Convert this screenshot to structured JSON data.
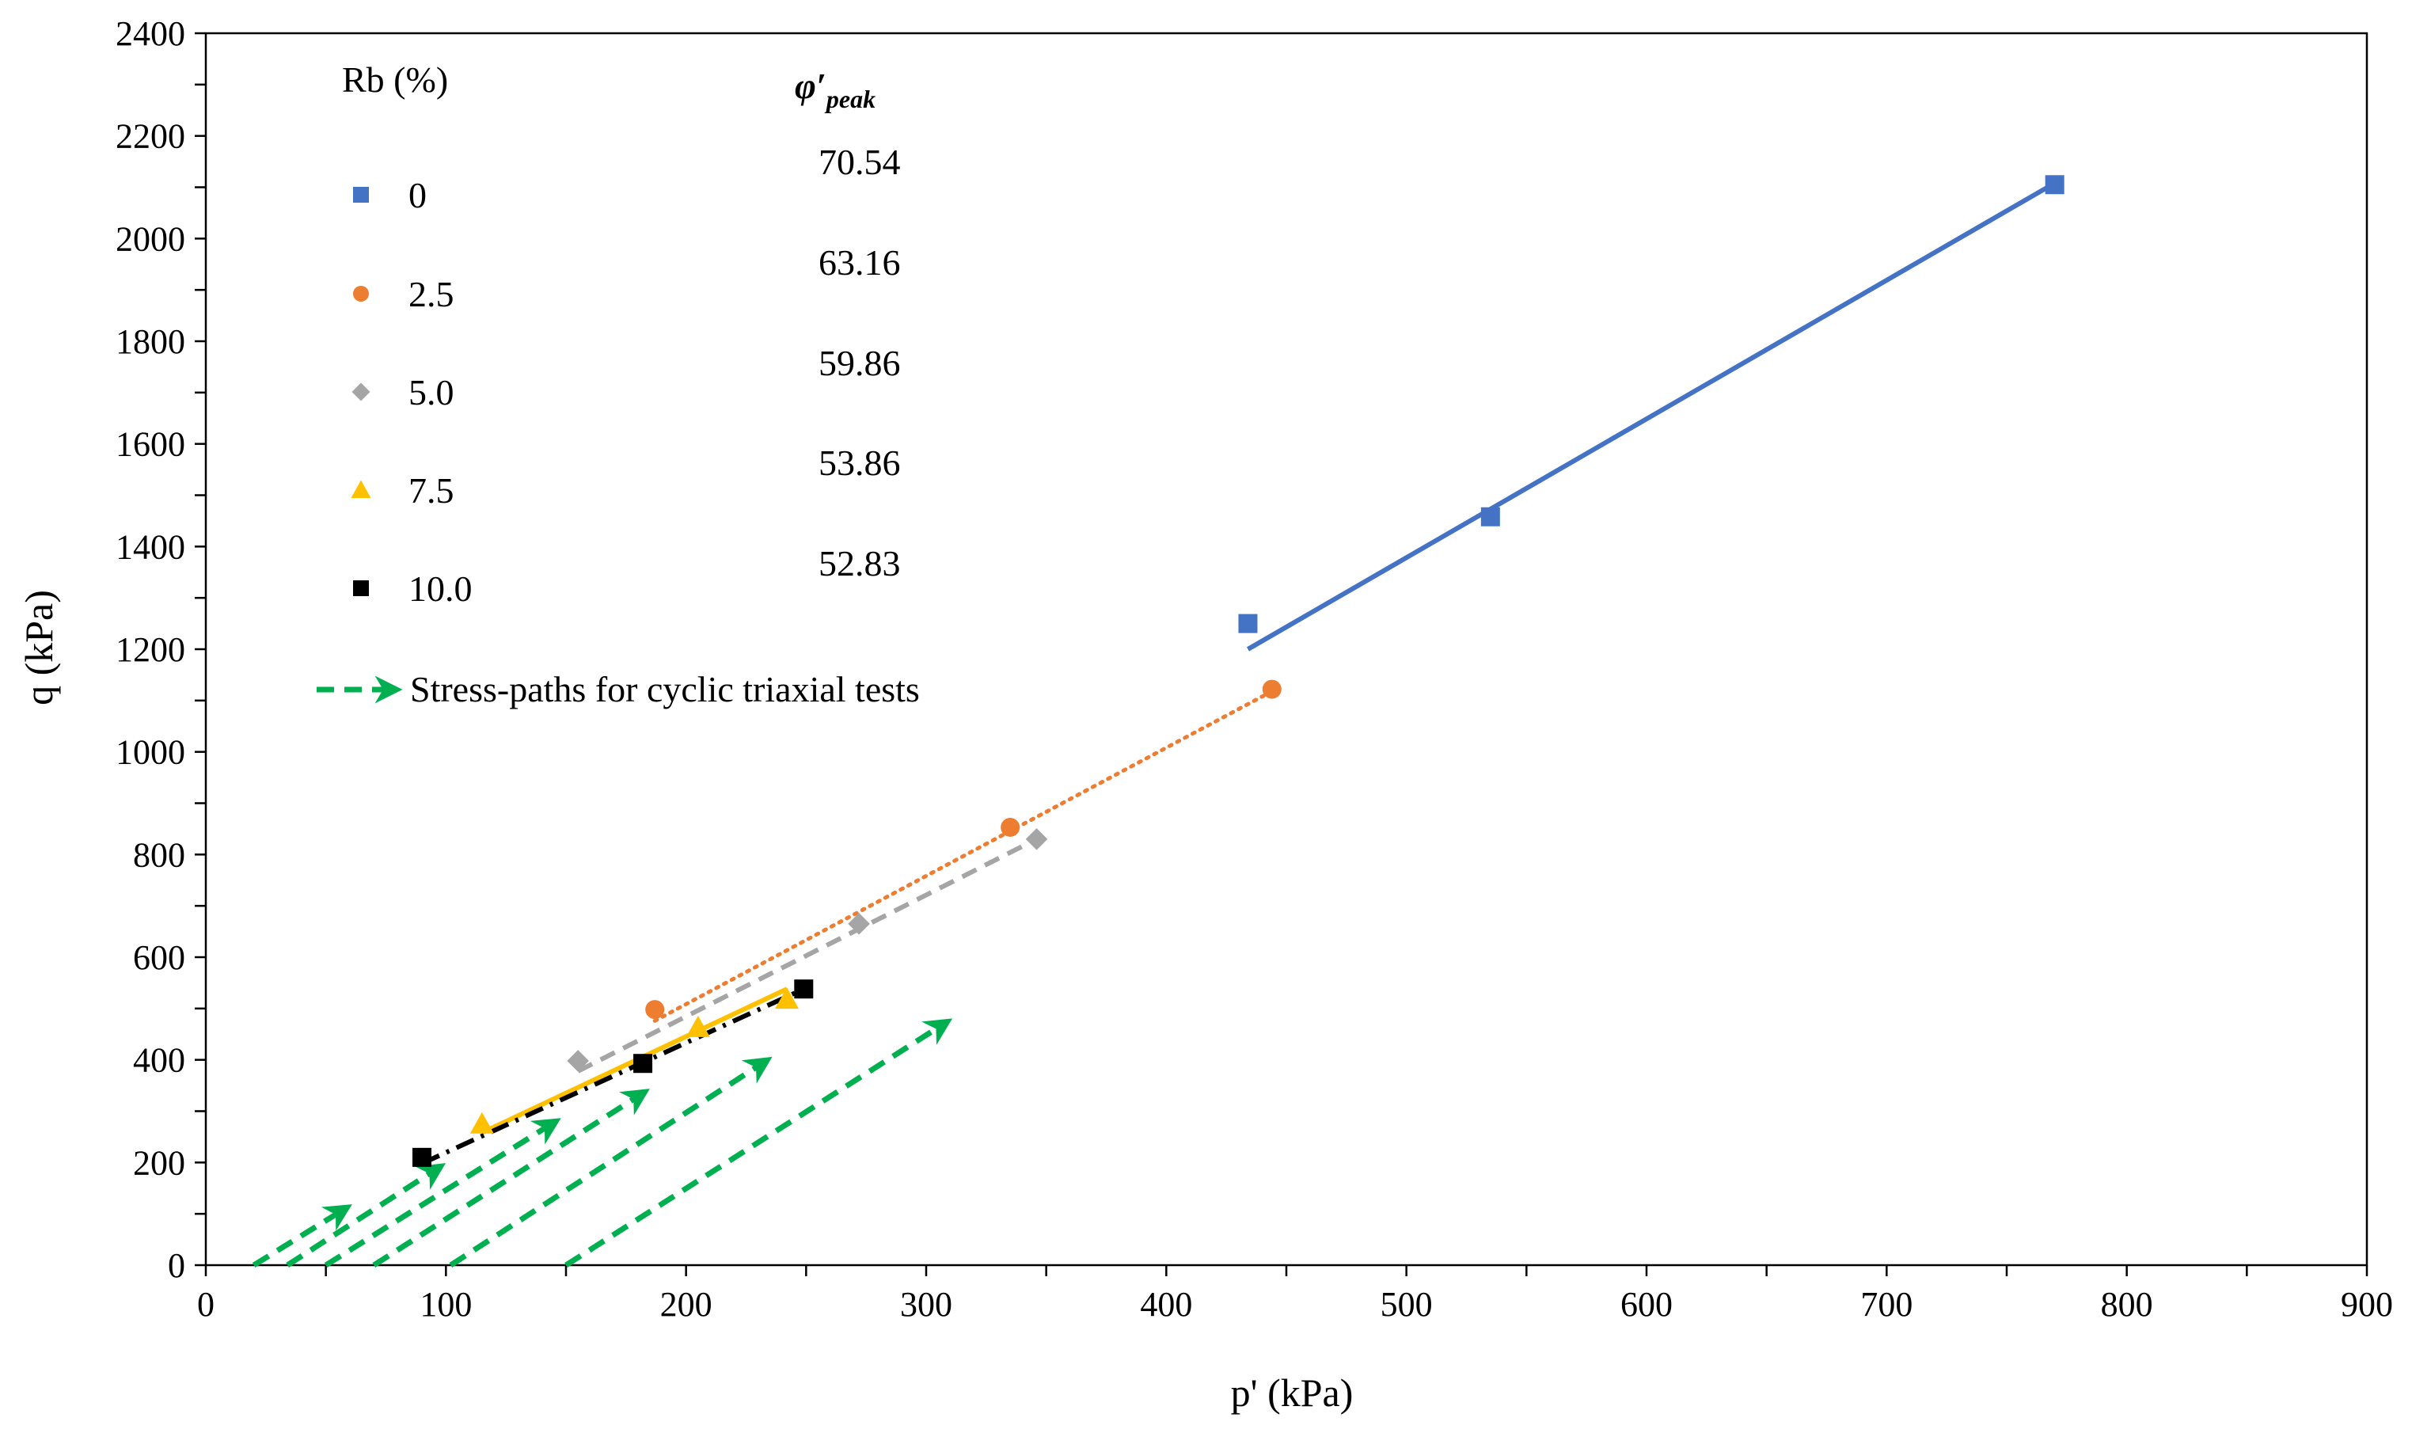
{
  "chart_data": {
    "type": "scatter",
    "xlabel": "p' (kPa)",
    "ylabel": "q (kPa)",
    "xlim": [
      0,
      900
    ],
    "ylim": [
      0,
      2400
    ],
    "xticks": [
      0,
      100,
      200,
      300,
      400,
      500,
      600,
      700,
      800,
      900
    ],
    "yticks": [
      0,
      200,
      400,
      600,
      800,
      1000,
      1200,
      1400,
      1600,
      1800,
      2000,
      2200,
      2400
    ],
    "grid": false,
    "legend_title": "Rb (%)",
    "phi_header": "φ′peak",
    "series": [
      {
        "name": "0",
        "phi_peak": "70.54",
        "color": "#4472C4",
        "marker": "square",
        "line_style": "solid",
        "points": [
          [
            434,
            1250
          ],
          [
            535,
            1458
          ],
          [
            770,
            2105
          ]
        ],
        "trendline": [
          [
            434,
            1200
          ],
          [
            770,
            2108
          ]
        ]
      },
      {
        "name": "2.5",
        "phi_peak": "63.16",
        "color": "#ED7D31",
        "marker": "circle",
        "line_style": "dotted",
        "points": [
          [
            187,
            498
          ],
          [
            335,
            853
          ],
          [
            444,
            1122
          ]
        ],
        "trendline": [
          [
            187,
            476
          ],
          [
            444,
            1118
          ]
        ]
      },
      {
        "name": "5.0",
        "phi_peak": "59.86",
        "color": "#A5A5A5",
        "marker": "diamond",
        "line_style": "dashed",
        "points": [
          [
            155,
            398
          ],
          [
            272,
            665
          ],
          [
            346,
            830
          ]
        ],
        "trendline": [
          [
            155,
            378
          ],
          [
            346,
            830
          ]
        ]
      },
      {
        "name": "7.5",
        "phi_peak": "53.86",
        "color": "#FFC000",
        "marker": "triangle",
        "line_style": "solid",
        "points": [
          [
            115,
            275
          ],
          [
            205,
            463
          ],
          [
            242,
            518
          ]
        ],
        "trendline": [
          [
            115,
            258
          ],
          [
            242,
            538
          ]
        ]
      },
      {
        "name": "10.0",
        "phi_peak": "52.83",
        "color": "#000000",
        "marker": "square",
        "line_style": "dashdot",
        "points": [
          [
            90,
            210
          ],
          [
            182,
            393
          ],
          [
            249,
            538
          ]
        ],
        "trendline": [
          [
            90,
            198
          ],
          [
            249,
            538
          ]
        ]
      }
    ],
    "stress_paths": {
      "name": "Stress-paths for cyclic triaxial tests",
      "color": "#00B050",
      "paths": [
        [
          [
            20,
            0
          ],
          [
            58,
            110
          ]
        ],
        [
          [
            34,
            0
          ],
          [
            97,
            190
          ]
        ],
        [
          [
            50,
            0
          ],
          [
            145,
            278
          ]
        ],
        [
          [
            70,
            0
          ],
          [
            182,
            335
          ]
        ],
        [
          [
            102,
            0
          ],
          [
            233,
            397
          ]
        ],
        [
          [
            150,
            0
          ],
          [
            308,
            472
          ]
        ]
      ]
    }
  }
}
